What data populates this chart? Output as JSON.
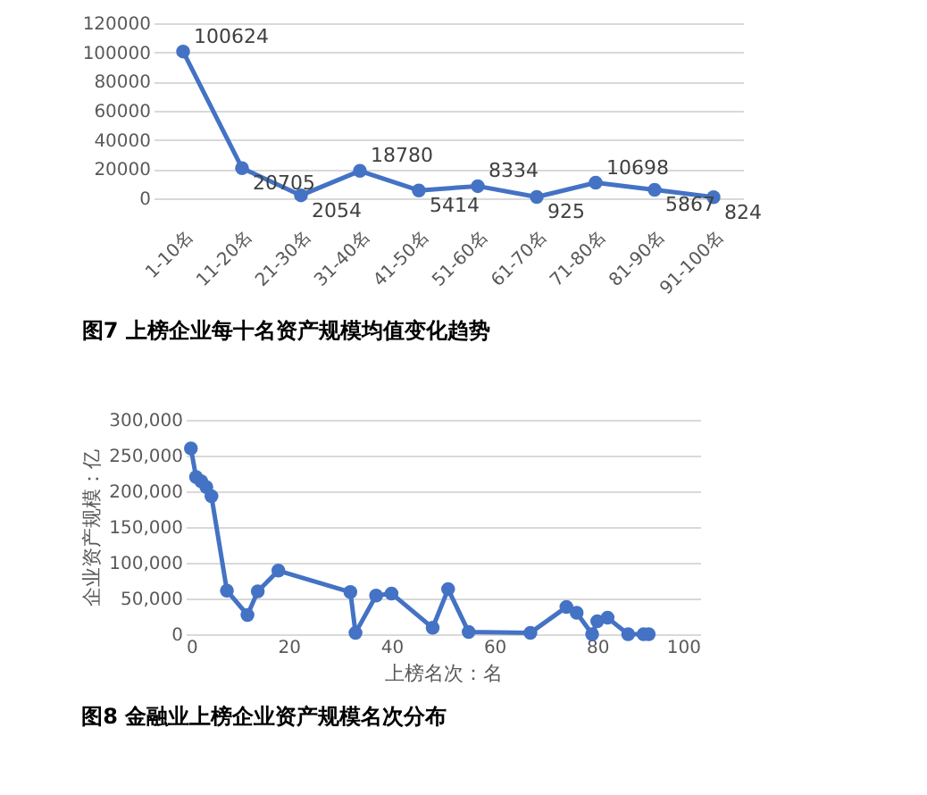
{
  "chart_data": [
    {
      "type": "line",
      "title": "图7    上榜企业每十名资产规模均值变化趋势",
      "categories": [
        "1-10名",
        "11-20名",
        "21-30名",
        "31-40名",
        "41-50名",
        "51-60名",
        "61-70名",
        "71-80名",
        "81-90名",
        "91-100名"
      ],
      "series": [
        {
          "color": "#4472c4",
          "values": [
            100624,
            20705,
            2054,
            18780,
            5414,
            8334,
            925,
            10698,
            5867,
            824
          ]
        }
      ],
      "ylim": [
        0,
        120000
      ],
      "yticks": [
        0,
        20000,
        40000,
        60000,
        80000,
        100000,
        120000
      ],
      "grid": "y",
      "marker": "circle",
      "data_labels": true
    },
    {
      "type": "line",
      "title": "图8   金融业上榜企业资产规模名次分布",
      "xlabel": "上榜名次：名",
      "ylabel": "企业资产规模：亿",
      "series": [
        {
          "color": "#4472c4",
          "x": [
            1,
            2,
            3,
            4,
            5,
            8,
            12,
            14,
            18,
            32,
            33,
            37,
            40,
            48,
            51,
            55,
            67,
            74,
            76,
            79,
            80,
            82,
            86,
            89,
            90
          ],
          "values": [
            260000,
            220000,
            214000,
            206000,
            193000,
            61000,
            27000,
            60000,
            89000,
            59000,
            2000,
            54000,
            57000,
            9000,
            63000,
            3000,
            2000,
            38000,
            30000,
            0,
            18000,
            23000,
            0,
            0,
            0
          ]
        }
      ],
      "xlim": [
        0,
        100
      ],
      "xticks": [
        0,
        20,
        40,
        60,
        80,
        100
      ],
      "ylim": [
        0,
        300000
      ],
      "yticks": [
        0,
        {
          "value": 50000,
          "label": "50,000"
        },
        {
          "value": 100000,
          "label": "100,000"
        },
        {
          "value": 150000,
          "label": "150,000"
        },
        {
          "value": 200000,
          "label": "200,000"
        },
        {
          "value": 250000,
          "label": "250,000"
        },
        {
          "value": 300000,
          "label": "300,000"
        }
      ],
      "grid": "y",
      "marker": "circle"
    }
  ]
}
